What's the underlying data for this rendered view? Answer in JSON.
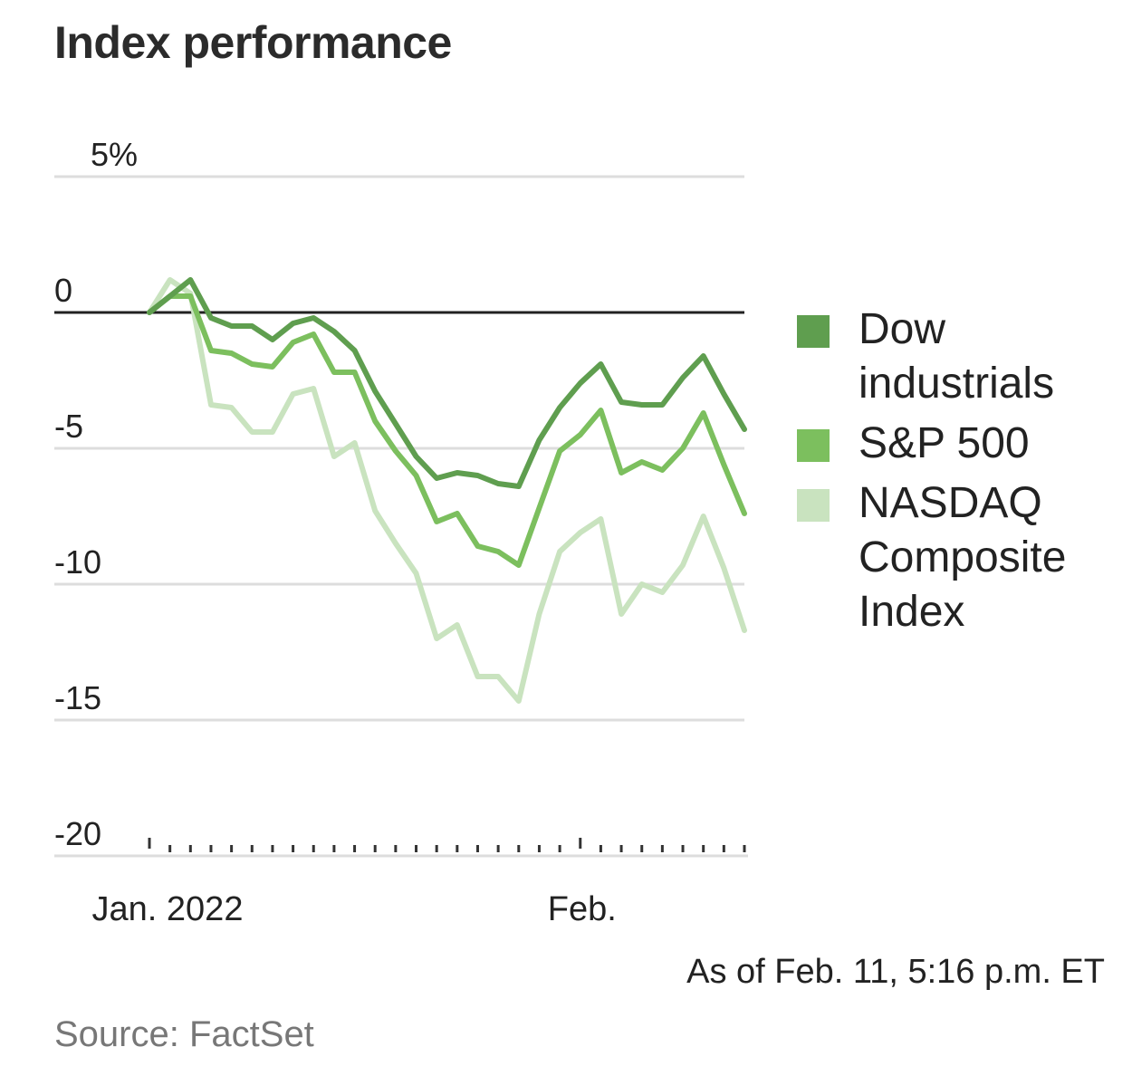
{
  "title": "Index performance",
  "note": "As of Feb. 11, 5:16 p.m. ET",
  "source": "Source: FactSet",
  "chart_data": {
    "type": "line",
    "title": "Index performance",
    "xlabel": "",
    "ylabel": "",
    "y_unit": "%",
    "ylim": [
      -20,
      5
    ],
    "yticks": [
      5,
      0,
      -5,
      -10,
      -15,
      -20
    ],
    "ytick_labels": [
      "5%",
      "0",
      "-5",
      "-10",
      "-15",
      "-20"
    ],
    "x": [
      "2021-12-31",
      "2022-01-03",
      "2022-01-04",
      "2022-01-05",
      "2022-01-06",
      "2022-01-07",
      "2022-01-10",
      "2022-01-11",
      "2022-01-12",
      "2022-01-13",
      "2022-01-14",
      "2022-01-18",
      "2022-01-19",
      "2022-01-20",
      "2022-01-21",
      "2022-01-24",
      "2022-01-25",
      "2022-01-26",
      "2022-01-27",
      "2022-01-28",
      "2022-01-31",
      "2022-02-01",
      "2022-02-02",
      "2022-02-03",
      "2022-02-04",
      "2022-02-07",
      "2022-02-08",
      "2022-02-09",
      "2022-02-10",
      "2022-02-11"
    ],
    "xtick_labels": [
      {
        "label": "Jan. 2022",
        "at": "2021-12-31"
      },
      {
        "label": "Feb.",
        "at": "2022-02-01"
      }
    ],
    "grid": "horizontal",
    "zero_line": true,
    "legend_position": "right",
    "series": [
      {
        "name": "Dow industrials",
        "color": "#5f9e4f",
        "values": [
          0.0,
          0.6,
          1.2,
          -0.2,
          -0.5,
          -0.5,
          -1.0,
          -0.4,
          -0.2,
          -0.7,
          -1.4,
          -2.9,
          -4.1,
          -5.3,
          -6.1,
          -5.9,
          -6.0,
          -6.3,
          -6.4,
          -4.7,
          -3.5,
          -2.6,
          -1.9,
          -3.3,
          -3.4,
          -3.4,
          -2.4,
          -1.6,
          -3.0,
          -4.3
        ]
      },
      {
        "name": "S&P 500",
        "color": "#7cbf5e",
        "values": [
          0.0,
          0.6,
          0.6,
          -1.4,
          -1.5,
          -1.9,
          -2.0,
          -1.1,
          -0.8,
          -2.2,
          -2.2,
          -4.0,
          -5.1,
          -6.0,
          -7.7,
          -7.4,
          -8.6,
          -8.8,
          -9.3,
          -7.2,
          -5.1,
          -4.5,
          -3.6,
          -5.9,
          -5.5,
          -5.8,
          -5.0,
          -3.7,
          -5.6,
          -7.4
        ]
      },
      {
        "name": "NASDAQ Composite Index",
        "color": "#c9e3bf",
        "values": [
          0.0,
          1.2,
          0.7,
          -3.4,
          -3.5,
          -4.4,
          -4.4,
          -3.0,
          -2.8,
          -5.3,
          -4.8,
          -7.3,
          -8.5,
          -9.6,
          -12.0,
          -11.5,
          -13.4,
          -13.4,
          -14.3,
          -11.1,
          -8.8,
          -8.1,
          -7.6,
          -11.1,
          -10.0,
          -10.3,
          -9.3,
          -7.5,
          -9.4,
          -11.7
        ]
      }
    ]
  }
}
